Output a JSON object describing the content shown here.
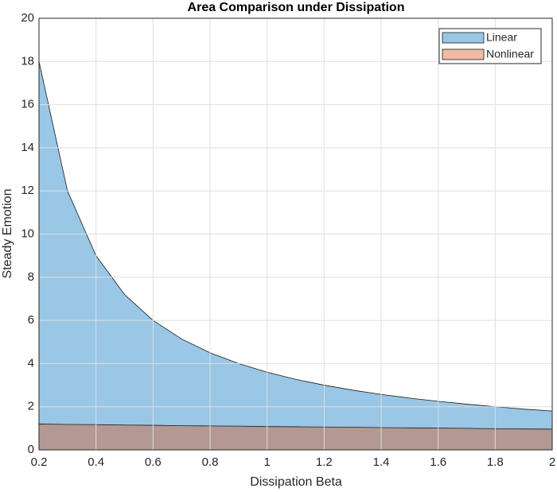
{
  "chart_data": {
    "type": "area",
    "title": "Area Comparison under Dissipation",
    "xlabel": "Dissipation Beta",
    "ylabel": "Steady Emotion",
    "x": [
      0.2,
      0.3,
      0.4,
      0.5,
      0.6,
      0.7,
      0.8,
      0.9,
      1.0,
      1.1,
      1.2,
      1.3,
      1.4,
      1.5,
      1.6,
      1.7,
      1.8,
      1.9,
      2.0
    ],
    "series": [
      {
        "name": "Linear",
        "color": "#0072bd",
        "values": [
          18,
          12,
          9,
          7.2,
          6,
          5.14,
          4.5,
          4,
          3.6,
          3.27,
          3,
          2.77,
          2.57,
          2.4,
          2.25,
          2.12,
          2,
          1.89,
          1.8
        ]
      },
      {
        "name": "Nonlinear",
        "color": "#d95319",
        "values": [
          1.2,
          1.18,
          1.17,
          1.15,
          1.14,
          1.12,
          1.11,
          1.1,
          1.08,
          1.07,
          1.06,
          1.05,
          1.03,
          1.02,
          1.01,
          1.0,
          0.98,
          0.97,
          0.96
        ]
      }
    ],
    "xlim": [
      0.2,
      2
    ],
    "xticks": [
      0.2,
      0.4,
      0.6,
      0.8,
      1,
      1.2,
      1.4,
      1.6,
      1.8,
      2
    ],
    "ylim": [
      0,
      20
    ],
    "yticks": [
      0,
      2,
      4,
      6,
      8,
      10,
      12,
      14,
      16,
      18,
      20
    ],
    "grid": true,
    "legend": "northeast"
  }
}
